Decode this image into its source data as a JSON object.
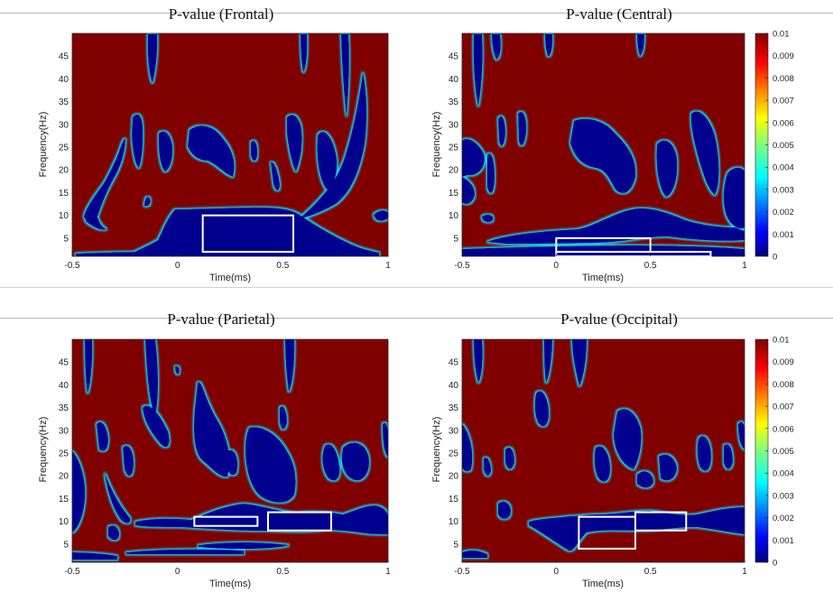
{
  "chart_data": [
    {
      "type": "heatmap",
      "title": "P-value (Frontal)",
      "xlabel": "Time(ms)",
      "ylabel": "Frequency(Hz)",
      "xlim": [
        -0.5,
        1
      ],
      "ylim": [
        1,
        50
      ],
      "xticks": [
        -0.5,
        0,
        0.5,
        1
      ],
      "yticks": [
        5,
        10,
        15,
        20,
        25,
        30,
        35,
        40,
        45
      ],
      "regions": [
        {
          "t0": 0.12,
          "t1": 0.55,
          "f0": 2,
          "f1": 10
        }
      ]
    },
    {
      "type": "heatmap",
      "title": "P-value (Central)",
      "xlabel": "Time(ms)",
      "ylabel": "Frequency(Hz)",
      "xlim": [
        -0.5,
        1
      ],
      "ylim": [
        1,
        50
      ],
      "xticks": [
        -0.5,
        0,
        0.5,
        1
      ],
      "yticks": [
        5,
        10,
        15,
        20,
        25,
        30,
        35,
        40,
        45
      ],
      "regions": [
        {
          "t0": 0.0,
          "t1": 0.5,
          "f0": 2,
          "f1": 5
        },
        {
          "t0": 0.0,
          "t1": 0.82,
          "f0": 1,
          "f1": 2
        }
      ],
      "colorbar": {
        "min": 0,
        "max": 0.01,
        "ticks": [
          "0",
          "0.001",
          "0.002",
          "0.003",
          "0.004",
          "0.005",
          "0.006",
          "0.007",
          "0.008",
          "0.009",
          "0.01"
        ]
      }
    },
    {
      "type": "heatmap",
      "title": "P-value (Parietal)",
      "xlabel": "Time(ms)",
      "ylabel": "Frequency(Hz)",
      "xlim": [
        -0.5,
        1
      ],
      "ylim": [
        1,
        50
      ],
      "xticks": [
        -0.5,
        0,
        0.5,
        1
      ],
      "yticks": [
        5,
        10,
        15,
        20,
        25,
        30,
        35,
        40,
        45
      ],
      "regions": [
        {
          "t0": 0.08,
          "t1": 0.38,
          "f0": 9,
          "f1": 11
        },
        {
          "t0": 0.43,
          "t1": 0.73,
          "f0": 8,
          "f1": 12
        }
      ]
    },
    {
      "type": "heatmap",
      "title": "P-value (Occipital)",
      "xlabel": "Time(ms)",
      "ylabel": "Frequency(Hz)",
      "xlim": [
        -0.5,
        1
      ],
      "ylim": [
        1,
        50
      ],
      "xticks": [
        -0.5,
        0,
        0.5,
        1
      ],
      "yticks": [
        5,
        10,
        15,
        20,
        25,
        30,
        35,
        40,
        45
      ],
      "regions": [
        {
          "t0": 0.12,
          "t1": 0.42,
          "f0": 4,
          "f1": 11
        },
        {
          "t0": 0.42,
          "t1": 0.69,
          "f0": 8,
          "f1": 12
        }
      ],
      "colorbar": {
        "min": 0,
        "max": 0.01,
        "ticks": [
          "0",
          "0.001",
          "0.002",
          "0.003",
          "0.004",
          "0.005",
          "0.006",
          "0.007",
          "0.008",
          "0.009",
          "0.01"
        ]
      }
    }
  ]
}
